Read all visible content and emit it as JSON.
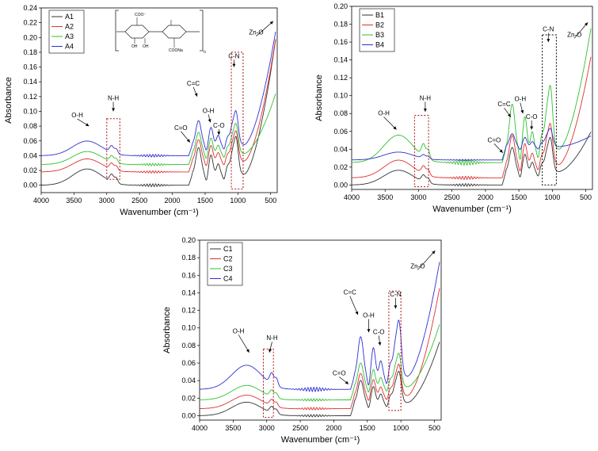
{
  "figure": {
    "panels": [
      "A",
      "B",
      "C"
    ],
    "structure_labels": [
      "COO⁻",
      "OH",
      "OH",
      "COONa",
      "n"
    ]
  },
  "chart_data": [
    {
      "id": "A",
      "type": "line",
      "xlabel": "Wavenumber (cm⁻¹)",
      "ylabel": "Absorbance",
      "xlim": [
        4000,
        400
      ],
      "ylim": [
        -0.01,
        0.24
      ],
      "xticks": [
        4000,
        3500,
        3000,
        2500,
        2000,
        1500,
        1000,
        500
      ],
      "yticks": [
        0.0,
        0.02,
        0.04,
        0.06,
        0.08,
        0.1,
        0.12,
        0.14,
        0.16,
        0.18,
        0.2,
        0.22,
        0.24
      ],
      "legend_position": "top-left",
      "series": [
        {
          "name": "A1",
          "color": "#333333",
          "offset": 0.0,
          "amp": 1.0,
          "end": 0.215
        },
        {
          "name": "A2",
          "color": "#e03030",
          "offset": 0.018,
          "amp": 0.8,
          "end": 0.215
        },
        {
          "name": "A3",
          "color": "#30c030",
          "offset": 0.028,
          "amp": 0.8,
          "end": 0.14
        },
        {
          "name": "A4",
          "color": "#3030d0",
          "offset": 0.04,
          "amp": 0.9,
          "end": 0.225
        }
      ],
      "annotations": [
        {
          "text": "O-H",
          "x": 3450,
          "y": 0.092,
          "ax": 3270,
          "ay": 0.08
        },
        {
          "text": "N-H",
          "x": 2900,
          "y": 0.115,
          "ax": 2900,
          "ay": 0.1
        },
        {
          "text": "C=O",
          "x": 1870,
          "y": 0.075,
          "ax": 1730,
          "ay": 0.058
        },
        {
          "text": "C=C",
          "x": 1680,
          "y": 0.135,
          "ax": 1620,
          "ay": 0.12
        },
        {
          "text": "O-H",
          "x": 1450,
          "y": 0.098,
          "ax": 1420,
          "ay": 0.085
        },
        {
          "text": "C-O",
          "x": 1290,
          "y": 0.078,
          "ax": 1290,
          "ay": 0.068
        },
        {
          "text": "C-N",
          "x": 1060,
          "y": 0.172,
          "ax": 1060,
          "ay": 0.16
        },
        {
          "text": "Zn-O",
          "x": 720,
          "y": 0.204,
          "ax": 460,
          "ay": 0.222
        }
      ],
      "boxes": [
        {
          "x1": 3000,
          "x2": 2800,
          "y1": 0.008,
          "y2": 0.09
        },
        {
          "x1": 1100,
          "x2": 920,
          "y1": -0.005,
          "y2": 0.18
        }
      ]
    },
    {
      "id": "B",
      "type": "line",
      "xlabel": "Wavenumber (cm⁻¹)",
      "ylabel": "Absorbance",
      "xlim": [
        4000,
        400
      ],
      "ylim": [
        -0.005,
        0.2
      ],
      "xticks": [
        4000,
        3500,
        3000,
        2500,
        2000,
        1500,
        1000,
        500
      ],
      "yticks": [
        0.0,
        0.02,
        0.04,
        0.06,
        0.08,
        0.1,
        0.12,
        0.14,
        0.16,
        0.18,
        0.2
      ],
      "legend_position": "top-left",
      "series": [
        {
          "name": "B1",
          "color": "#333333",
          "offset": 0.0,
          "amp": 0.75,
          "end": 0.075
        },
        {
          "name": "B2",
          "color": "#e03030",
          "offset": 0.008,
          "amp": 0.9,
          "end": 0.16
        },
        {
          "name": "B3",
          "color": "#30c030",
          "offset": 0.025,
          "amp": 1.4,
          "end": 0.192
        },
        {
          "name": "B4",
          "color": "#3030d0",
          "offset": 0.028,
          "amp": 0.4,
          "end": 0.07
        }
      ],
      "annotations": [
        {
          "text": "O-H",
          "x": 3520,
          "y": 0.078,
          "ax": 3330,
          "ay": 0.062
        },
        {
          "text": "N-H",
          "x": 2900,
          "y": 0.095,
          "ax": 2900,
          "ay": 0.082
        },
        {
          "text": "C=O",
          "x": 1870,
          "y": 0.048,
          "ax": 1740,
          "ay": 0.036
        },
        {
          "text": "C=C",
          "x": 1720,
          "y": 0.088,
          "ax": 1620,
          "ay": 0.076
        },
        {
          "text": "O-H",
          "x": 1480,
          "y": 0.094,
          "ax": 1440,
          "ay": 0.08
        },
        {
          "text": "C-O",
          "x": 1310,
          "y": 0.074,
          "ax": 1310,
          "ay": 0.062
        },
        {
          "text": "C-N",
          "x": 1060,
          "y": 0.172,
          "ax": 1060,
          "ay": 0.16
        },
        {
          "text": "Zn-O",
          "x": 670,
          "y": 0.166,
          "ax": 470,
          "ay": 0.182
        }
      ],
      "boxes": [
        {
          "x1": 3060,
          "x2": 2850,
          "y1": -0.002,
          "y2": 0.078
        },
        {
          "x1": 1150,
          "x2": 940,
          "y1": 0.0,
          "y2": 0.168
        }
      ]
    },
    {
      "id": "C",
      "type": "line",
      "xlabel": "Wavenumber (cm⁻¹)",
      "ylabel": "Absorbance",
      "xlim": [
        4000,
        400
      ],
      "ylim": [
        -0.005,
        0.2
      ],
      "xticks": [
        4000,
        3500,
        3000,
        2500,
        2000,
        1500,
        1000,
        500
      ],
      "yticks": [
        0.0,
        0.02,
        0.04,
        0.06,
        0.08,
        0.1,
        0.12,
        0.14,
        0.16,
        0.18,
        0.2
      ],
      "legend_position": "top-left",
      "series": [
        {
          "name": "C1",
          "color": "#333333",
          "offset": 0.0,
          "amp": 0.7,
          "end": 0.1
        },
        {
          "name": "C2",
          "color": "#e03030",
          "offset": 0.008,
          "amp": 0.7,
          "end": 0.162
        },
        {
          "name": "C3",
          "color": "#30c030",
          "offset": 0.018,
          "amp": 0.75,
          "end": 0.12
        },
        {
          "name": "C4",
          "color": "#3030d0",
          "offset": 0.03,
          "amp": 1.25,
          "end": 0.192
        }
      ],
      "annotations": [
        {
          "text": "O-H",
          "x": 3420,
          "y": 0.094,
          "ax": 3260,
          "ay": 0.072
        },
        {
          "text": "N-H",
          "x": 2920,
          "y": 0.086,
          "ax": 2960,
          "ay": 0.072
        },
        {
          "text": "C=O",
          "x": 1920,
          "y": 0.046,
          "ax": 1780,
          "ay": 0.036
        },
        {
          "text": "C=C",
          "x": 1760,
          "y": 0.138,
          "ax": 1640,
          "ay": 0.115
        },
        {
          "text": "O-H",
          "x": 1480,
          "y": 0.112,
          "ax": 1480,
          "ay": 0.095
        },
        {
          "text": "C-O",
          "x": 1330,
          "y": 0.093,
          "ax": 1310,
          "ay": 0.08
        },
        {
          "text": "C-N",
          "x": 1080,
          "y": 0.136,
          "ax": 1080,
          "ay": 0.122
        },
        {
          "text": "Zn-O",
          "x": 750,
          "y": 0.168,
          "ax": 490,
          "ay": 0.188
        }
      ],
      "boxes": [
        {
          "x1": 3050,
          "x2": 2900,
          "y1": -0.002,
          "y2": 0.076
        },
        {
          "x1": 1180,
          "x2": 1000,
          "y1": 0.006,
          "y2": 0.142
        }
      ]
    }
  ]
}
